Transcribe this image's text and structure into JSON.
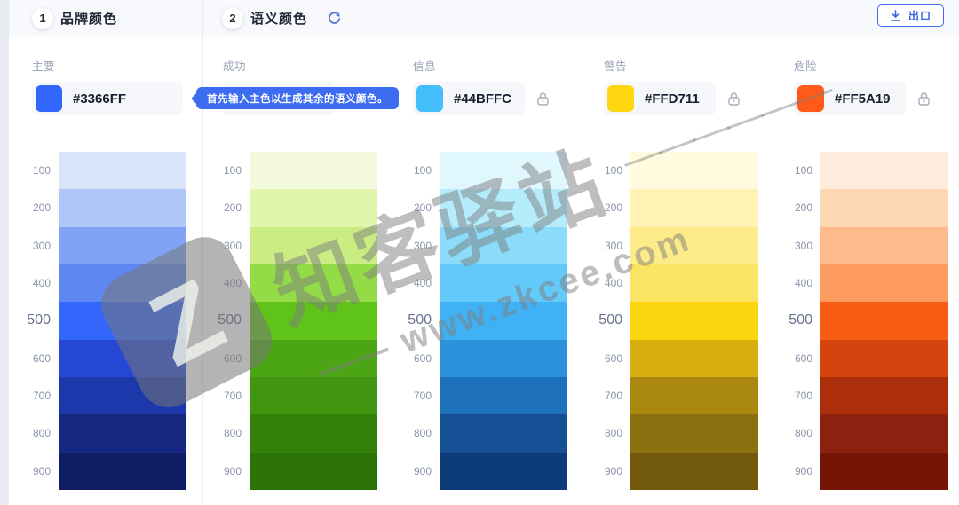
{
  "header": {
    "step1": {
      "number": "1",
      "title": "品牌颜色"
    },
    "step2": {
      "number": "2",
      "title": "语义颜色"
    },
    "export_label": "出口"
  },
  "tooltip": {
    "text": "首先输入主色以生成其余的语义颜色。"
  },
  "watermark": {
    "logo_letter": "Z",
    "title": "知客驿站",
    "title_dash": "——————",
    "subtitle": "—— www.zkcee.com"
  },
  "theme": {
    "accent": "#3366FF",
    "tooltip_bg": "#3D6CF0",
    "header_bg": "#F8F9FC"
  },
  "scale_levels": [
    "100",
    "200",
    "300",
    "400",
    "500",
    "600",
    "700",
    "800",
    "900"
  ],
  "columns": [
    {
      "key": "primary",
      "label": "主要",
      "hex": "#3366FF",
      "has_swatch": true,
      "has_lock": false,
      "shades": [
        "#DBE5FA",
        "#AEC6F8",
        "#82A3F5",
        "#5E87F2",
        "#3366FB",
        "#2748D4",
        "#1C38AB",
        "#152781",
        "#101C64"
      ]
    },
    {
      "key": "success",
      "label": "成功",
      "hex": "",
      "has_swatch": false,
      "has_lock": false,
      "shades": [
        "#F3FAE0",
        "#E2F5AC",
        "#C9EC83",
        "#93DB47",
        "#5FC319",
        "#4CA514",
        "#42960F",
        "#33800A",
        "#2B7307"
      ]
    },
    {
      "key": "info",
      "label": "信息",
      "hex": "#44BFFC",
      "has_swatch": true,
      "has_lock": true,
      "shades": [
        "#DFF7FD",
        "#B5ECFC",
        "#8BDCFB",
        "#62C9F9",
        "#3FB2F6",
        "#2D92DC",
        "#1E72BB",
        "#155094",
        "#0D3A78"
      ]
    },
    {
      "key": "warning",
      "label": "警告",
      "hex": "#FFD711",
      "has_swatch": true,
      "has_lock": true,
      "shades": [
        "#FFFBDF",
        "#FEF3B2",
        "#FDEC89",
        "#FBE463",
        "#FBD60E",
        "#D7AF11",
        "#AA870E",
        "#8C6F0E",
        "#73590B"
      ]
    },
    {
      "key": "danger",
      "label": "危险",
      "hex": "#FF5A19",
      "has_swatch": true,
      "has_lock": true,
      "shades": [
        "#FDEBDB",
        "#FDD6B4",
        "#FDBA8B",
        "#FD9C5E",
        "#F95D15",
        "#D4440F",
        "#AC2F0B",
        "#8C2110",
        "#761407"
      ]
    }
  ]
}
